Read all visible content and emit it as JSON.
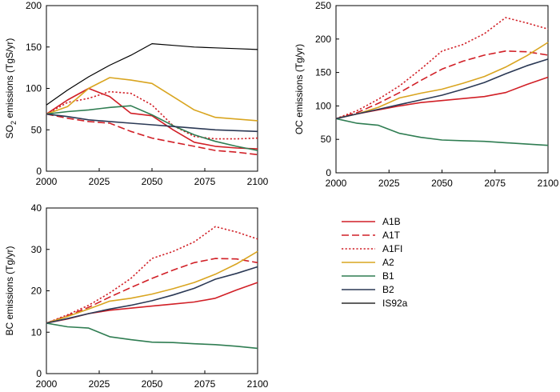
{
  "chart_data": [
    {
      "type": "line",
      "ylabel_main": "SO",
      "ylabel_sub": "2",
      "ylabel_rest": " emissions  (TgS/yr)",
      "xlim": [
        2000,
        2100
      ],
      "ylim": [
        0,
        200
      ],
      "xticks": [
        "2000",
        "2025",
        "2050",
        "2075",
        "2100"
      ],
      "yticks": [
        "0",
        "50",
        "100",
        "150",
        "200"
      ],
      "series": [
        {
          "name": "A1B",
          "x": [
            2000,
            2010,
            2020,
            2030,
            2040,
            2050,
            2060,
            2070,
            2080,
            2090,
            2100
          ],
          "y": [
            69,
            86,
            100,
            90,
            70,
            67,
            50,
            35,
            30,
            28,
            27
          ]
        },
        {
          "name": "A1T",
          "x": [
            2000,
            2010,
            2020,
            2030,
            2040,
            2050,
            2060,
            2070,
            2080,
            2090,
            2100
          ],
          "y": [
            69,
            64,
            60,
            58,
            48,
            40,
            35,
            30,
            25,
            23,
            20
          ]
        },
        {
          "name": "A1FI",
          "x": [
            2000,
            2010,
            2020,
            2030,
            2040,
            2050,
            2060,
            2070,
            2080,
            2090,
            2100
          ],
          "y": [
            69,
            83,
            88,
            96,
            94,
            80,
            55,
            42,
            39,
            39,
            40
          ]
        },
        {
          "name": "A2",
          "x": [
            2000,
            2010,
            2020,
            2030,
            2040,
            2050,
            2060,
            2070,
            2080,
            2090,
            2100
          ],
          "y": [
            69,
            78,
            100,
            113,
            110,
            106,
            90,
            74,
            65,
            63,
            61
          ]
        },
        {
          "name": "B1",
          "x": [
            2000,
            2010,
            2020,
            2030,
            2040,
            2050,
            2060,
            2070,
            2080,
            2090,
            2100
          ],
          "y": [
            69,
            72,
            74,
            77,
            79,
            68,
            55,
            44,
            36,
            30,
            25
          ]
        },
        {
          "name": "B2",
          "x": [
            2000,
            2010,
            2020,
            2030,
            2040,
            2050,
            2060,
            2070,
            2080,
            2090,
            2100
          ],
          "y": [
            69,
            66,
            62,
            60,
            58,
            56,
            54,
            52,
            50,
            49,
            48
          ]
        },
        {
          "name": "IS92a",
          "x": [
            2000,
            2010,
            2020,
            2030,
            2040,
            2050,
            2060,
            2070,
            2080,
            2090,
            2100
          ],
          "y": [
            80,
            98,
            114,
            128,
            140,
            154,
            152,
            150,
            149,
            148,
            147
          ]
        }
      ]
    },
    {
      "type": "line",
      "ylabel_main": "OC  emissions  (Tg/yr)",
      "xlim": [
        2000,
        2100
      ],
      "ylim": [
        0,
        250
      ],
      "xticks": [
        "2000",
        "2025",
        "2050",
        "2075",
        "2100"
      ],
      "yticks": [
        "0",
        "50",
        "100",
        "150",
        "200",
        "250"
      ],
      "series": [
        {
          "name": "A1B",
          "x": [
            2000,
            2010,
            2020,
            2030,
            2040,
            2050,
            2060,
            2070,
            2080,
            2090,
            2100
          ],
          "y": [
            81,
            88,
            94,
            100,
            105,
            108,
            111,
            114,
            120,
            132,
            143
          ]
        },
        {
          "name": "A1T",
          "x": [
            2000,
            2010,
            2020,
            2030,
            2040,
            2050,
            2060,
            2070,
            2080,
            2090,
            2100
          ],
          "y": [
            81,
            90,
            104,
            120,
            138,
            155,
            167,
            176,
            182,
            181,
            176
          ]
        },
        {
          "name": "A1FI",
          "x": [
            2000,
            2010,
            2020,
            2030,
            2040,
            2050,
            2060,
            2070,
            2080,
            2090,
            2100
          ],
          "y": [
            81,
            93,
            110,
            130,
            155,
            182,
            192,
            208,
            232,
            224,
            215
          ]
        },
        {
          "name": "A2",
          "x": [
            2000,
            2010,
            2020,
            2030,
            2040,
            2050,
            2060,
            2070,
            2080,
            2090,
            2100
          ],
          "y": [
            81,
            88,
            98,
            112,
            119,
            125,
            134,
            144,
            158,
            175,
            195
          ]
        },
        {
          "name": "B1",
          "x": [
            2000,
            2010,
            2020,
            2030,
            2040,
            2050,
            2060,
            2070,
            2080,
            2090,
            2100
          ],
          "y": [
            81,
            74,
            71,
            59,
            53,
            49,
            48,
            47,
            45,
            43,
            41
          ]
        },
        {
          "name": "B2",
          "x": [
            2000,
            2010,
            2020,
            2030,
            2040,
            2050,
            2060,
            2070,
            2080,
            2090,
            2100
          ],
          "y": [
            81,
            88,
            95,
            102,
            109,
            116,
            125,
            135,
            148,
            160,
            170
          ]
        }
      ]
    },
    {
      "type": "line",
      "ylabel_main": "BC  emissions  (Tg/yr)",
      "xlim": [
        2000,
        2100
      ],
      "ylim": [
        0,
        40
      ],
      "xticks": [
        "2000",
        "2025",
        "2050",
        "2075",
        "2100"
      ],
      "yticks": [
        "0",
        "10",
        "20",
        "30",
        "40"
      ],
      "series": [
        {
          "name": "A1B",
          "x": [
            2000,
            2010,
            2020,
            2030,
            2040,
            2050,
            2060,
            2070,
            2080,
            2090,
            2100
          ],
          "y": [
            12.2,
            13.2,
            14.5,
            15.3,
            15.8,
            16.3,
            16.8,
            17.3,
            18.2,
            20.2,
            22.0
          ]
        },
        {
          "name": "A1T",
          "x": [
            2000,
            2010,
            2020,
            2030,
            2040,
            2050,
            2060,
            2070,
            2080,
            2090,
            2100
          ],
          "y": [
            12.2,
            14.0,
            16.0,
            18.5,
            20.8,
            23.0,
            25.0,
            26.8,
            27.8,
            27.7,
            26.8
          ]
        },
        {
          "name": "A1FI",
          "x": [
            2000,
            2010,
            2020,
            2030,
            2040,
            2050,
            2060,
            2070,
            2080,
            2090,
            2100
          ],
          "y": [
            12.2,
            14.2,
            16.5,
            19.5,
            23.0,
            27.8,
            29.5,
            31.8,
            35.5,
            34.2,
            32.5
          ]
        },
        {
          "name": "A2",
          "x": [
            2000,
            2010,
            2020,
            2030,
            2040,
            2050,
            2060,
            2070,
            2080,
            2090,
            2100
          ],
          "y": [
            12.2,
            13.8,
            15.6,
            17.5,
            18.2,
            19.2,
            20.5,
            22.0,
            24.0,
            26.5,
            29.5
          ]
        },
        {
          "name": "B1",
          "x": [
            2000,
            2010,
            2020,
            2030,
            2040,
            2050,
            2060,
            2070,
            2080,
            2090,
            2100
          ],
          "y": [
            12.2,
            11.3,
            11.0,
            8.9,
            8.2,
            7.6,
            7.5,
            7.2,
            7.0,
            6.6,
            6.1
          ]
        },
        {
          "name": "B2",
          "x": [
            2000,
            2010,
            2020,
            2030,
            2040,
            2050,
            2060,
            2070,
            2080,
            2090,
            2100
          ],
          "y": [
            12.2,
            13.3,
            14.5,
            15.6,
            16.5,
            17.6,
            19.0,
            20.6,
            22.8,
            24.2,
            25.8
          ]
        }
      ]
    }
  ],
  "legend": {
    "placement": "lower-right",
    "entries": [
      {
        "name": "A1B",
        "color": "#d11f26",
        "style": "solid"
      },
      {
        "name": "A1T",
        "color": "#d11f26",
        "style": "dash"
      },
      {
        "name": "A1FI",
        "color": "#d11f26",
        "style": "dot"
      },
      {
        "name": "A2",
        "color": "#d9a520",
        "style": "solid"
      },
      {
        "name": "B1",
        "color": "#2f7d52",
        "style": "solid"
      },
      {
        "name": "B2",
        "color": "#2b3955",
        "style": "solid"
      },
      {
        "name": "IS92a",
        "color": "#000000",
        "style": "solid"
      }
    ]
  },
  "grid": false
}
